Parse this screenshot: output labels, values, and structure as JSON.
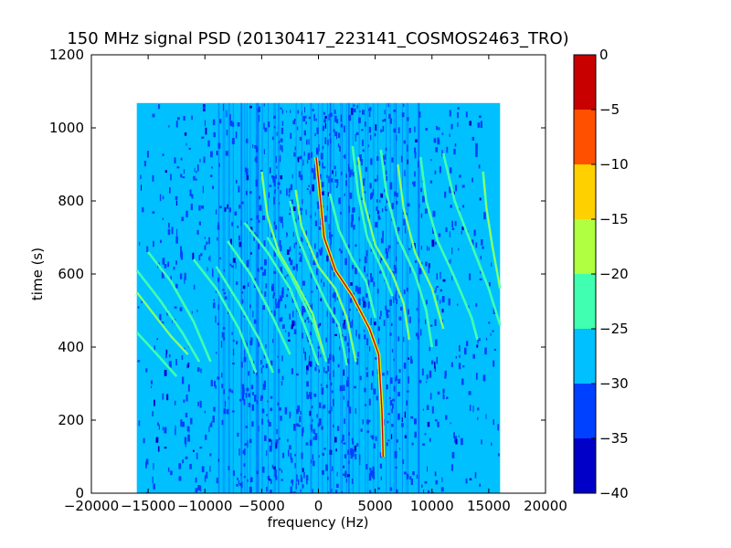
{
  "chart_data": {
    "type": "heatmap",
    "title": "150 MHz signal PSD (20130417_223141_COSMOS2463_TRO)",
    "xlabel": "frequency (Hz)",
    "ylabel": "time (s)",
    "xlim": [
      -20000,
      20000
    ],
    "ylim": [
      0,
      1200
    ],
    "xticks": [
      -20000,
      -15000,
      -10000,
      -5000,
      0,
      5000,
      10000,
      15000,
      20000
    ],
    "yticks": [
      0,
      200,
      400,
      600,
      800,
      1000,
      1200
    ],
    "data_extent": {
      "freq": [
        -16000,
        16000
      ],
      "time": [
        0,
        1068
      ]
    },
    "background_level": -30,
    "colorbar": {
      "levels": [
        -40,
        -35,
        -30,
        -25,
        -20,
        -15,
        -10,
        -5,
        0
      ],
      "ticks": [
        "0",
        "-5",
        "-10",
        "-15",
        "-20",
        "-25",
        "-30",
        "-35",
        "-40"
      ],
      "colors": [
        "#0000c8",
        "#0040ff",
        "#00c0ff",
        "#40ffb0",
        "#b0ff40",
        "#ffd000",
        "#ff5000",
        "#c80000"
      ]
    },
    "traces": [
      {
        "level": -5,
        "points": [
          [
            -200,
            920
          ],
          [
            0,
            860
          ],
          [
            500,
            700
          ],
          [
            1500,
            610
          ],
          [
            3000,
            540
          ],
          [
            4500,
            450
          ],
          [
            5300,
            380
          ],
          [
            5600,
            220
          ],
          [
            5700,
            100
          ]
        ]
      },
      {
        "level": -25,
        "points": [
          [
            -16000,
            610
          ],
          [
            -14000,
            530
          ],
          [
            -12000,
            440
          ],
          [
            -10500,
            360
          ]
        ]
      },
      {
        "level": -20,
        "points": [
          [
            -16000,
            550
          ],
          [
            -14500,
            490
          ],
          [
            -13000,
            430
          ],
          [
            -11500,
            380
          ]
        ]
      },
      {
        "level": -25,
        "points": [
          [
            -16000,
            440
          ],
          [
            -14500,
            390
          ],
          [
            -12500,
            320
          ]
        ]
      },
      {
        "level": -25,
        "points": [
          [
            -15000,
            660
          ],
          [
            -13000,
            580
          ],
          [
            -11000,
            470
          ],
          [
            -9500,
            360
          ]
        ]
      },
      {
        "level": -25,
        "points": [
          [
            -11000,
            640
          ],
          [
            -9000,
            560
          ],
          [
            -7000,
            450
          ],
          [
            -5500,
            330
          ]
        ]
      },
      {
        "level": -25,
        "points": [
          [
            -8000,
            690
          ],
          [
            -6000,
            600
          ],
          [
            -4000,
            480
          ],
          [
            -2500,
            380
          ]
        ]
      },
      {
        "level": -25,
        "points": [
          [
            -6500,
            740
          ],
          [
            -4500,
            660
          ],
          [
            -2500,
            560
          ],
          [
            -1000,
            440
          ],
          [
            0,
            350
          ]
        ]
      },
      {
        "level": -25,
        "points": [
          [
            -4500,
            700
          ],
          [
            -2500,
            600
          ],
          [
            -500,
            470
          ],
          [
            700,
            360
          ]
        ]
      },
      {
        "level": -20,
        "points": [
          [
            -5000,
            880
          ],
          [
            -4500,
            760
          ],
          [
            -3500,
            660
          ],
          [
            -2000,
            580
          ],
          [
            -500,
            490
          ],
          [
            500,
            380
          ]
        ]
      },
      {
        "level": -25,
        "points": [
          [
            -2500,
            800
          ],
          [
            -1800,
            700
          ],
          [
            -500,
            600
          ],
          [
            700,
            520
          ],
          [
            1800,
            460
          ],
          [
            2500,
            350
          ]
        ]
      },
      {
        "level": -20,
        "points": [
          [
            -2000,
            830
          ],
          [
            -1500,
            730
          ],
          [
            0,
            620
          ],
          [
            1500,
            560
          ],
          [
            2500,
            480
          ],
          [
            3300,
            360
          ]
        ]
      },
      {
        "level": -25,
        "points": [
          [
            1000,
            820
          ],
          [
            1800,
            720
          ],
          [
            3000,
            640
          ],
          [
            4200,
            580
          ],
          [
            5000,
            480
          ]
        ]
      },
      {
        "level": -20,
        "points": [
          [
            3500,
            920
          ],
          [
            4000,
            800
          ],
          [
            5000,
            680
          ],
          [
            6500,
            600
          ],
          [
            7500,
            520
          ],
          [
            8000,
            420
          ]
        ]
      },
      {
        "level": -25,
        "points": [
          [
            5500,
            940
          ],
          [
            6000,
            820
          ],
          [
            7000,
            700
          ],
          [
            8500,
            600
          ],
          [
            9500,
            500
          ],
          [
            10000,
            400
          ]
        ]
      },
      {
        "level": -20,
        "points": [
          [
            7000,
            900
          ],
          [
            7500,
            780
          ],
          [
            8500,
            660
          ],
          [
            10000,
            560
          ],
          [
            11000,
            450
          ]
        ]
      },
      {
        "level": -25,
        "points": [
          [
            9000,
            920
          ],
          [
            9500,
            800
          ],
          [
            10500,
            690
          ],
          [
            12000,
            590
          ],
          [
            13500,
            480
          ],
          [
            14000,
            420
          ]
        ]
      },
      {
        "level": -25,
        "points": [
          [
            11000,
            930
          ],
          [
            12000,
            800
          ],
          [
            13500,
            680
          ],
          [
            15000,
            560
          ],
          [
            16000,
            460
          ]
        ]
      },
      {
        "level": -20,
        "points": [
          [
            14500,
            880
          ],
          [
            14800,
            780
          ],
          [
            15300,
            680
          ],
          [
            16000,
            560
          ]
        ]
      },
      {
        "level": -25,
        "points": [
          [
            3000,
            950
          ],
          [
            3500,
            820
          ],
          [
            4300,
            700
          ],
          [
            5500,
            620
          ],
          [
            6500,
            540
          ]
        ]
      },
      {
        "level": -25,
        "points": [
          [
            -9000,
            620
          ],
          [
            -7000,
            520
          ],
          [
            -5200,
            420
          ],
          [
            -4000,
            330
          ]
        ]
      }
    ]
  }
}
